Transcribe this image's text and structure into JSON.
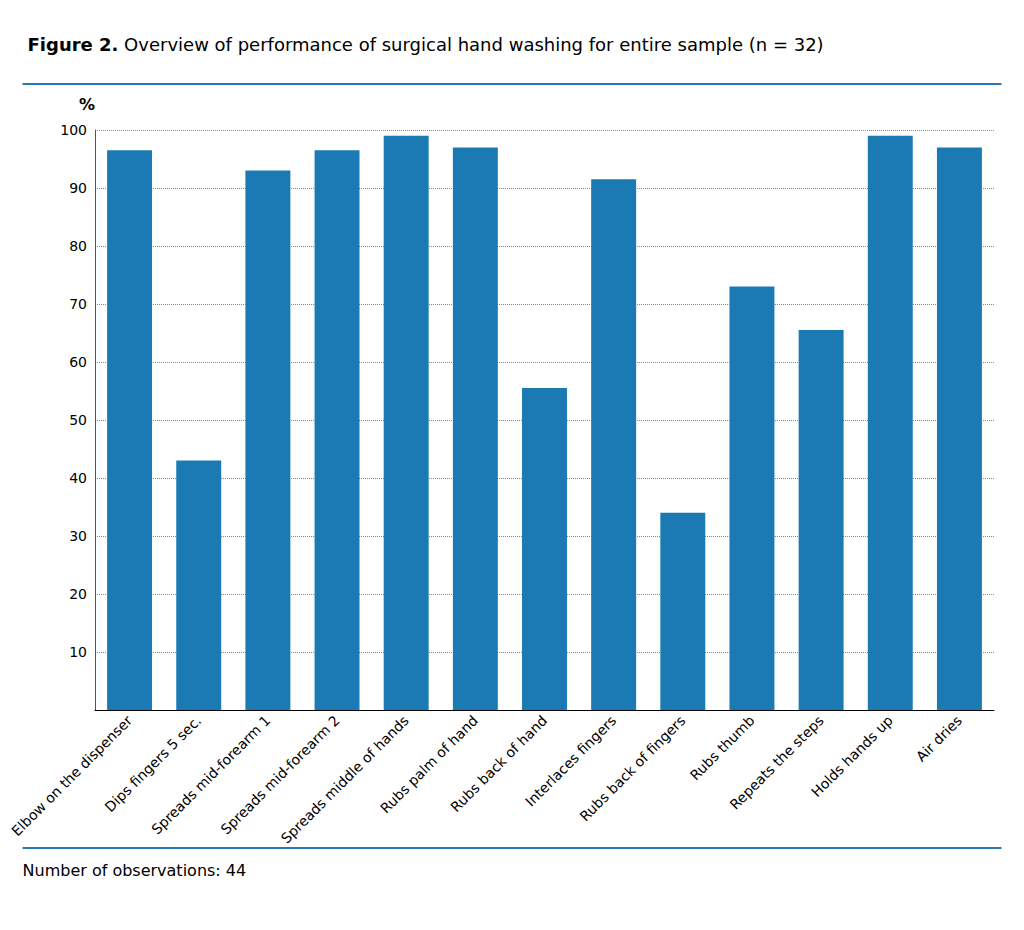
{
  "chart_data": {
    "type": "bar",
    "title": "Figure 2. Overview of performance of surgical hand washing for entire sample (n = 32)",
    "ylabel": "%",
    "annotations": [
      "Number of observations: 44"
    ],
    "categories": [
      "Elbow on the dispenser",
      "Dips fingers 5 sec.",
      "Spreads mid-forearm 1",
      "Spreads mid-forearm 2",
      "Spreads middle of hands",
      "Rubs palm of hand",
      "Rubs back of hand",
      "Interlaces fingers",
      "Rubs back of fingers",
      "Rubs thumb",
      "Repeats the steps",
      "Holds hands up",
      "Air dries"
    ],
    "values": [
      96.5,
      43.0,
      93.0,
      96.5,
      99.0,
      97.0,
      55.5,
      91.5,
      34.0,
      73.0,
      65.5,
      99.0,
      97.0
    ],
    "color": "#1b7ab3",
    "ylim": [
      0,
      100
    ],
    "yticks": [
      10,
      20,
      30,
      40,
      50,
      60,
      70,
      80,
      90,
      100
    ],
    "grid": true
  }
}
